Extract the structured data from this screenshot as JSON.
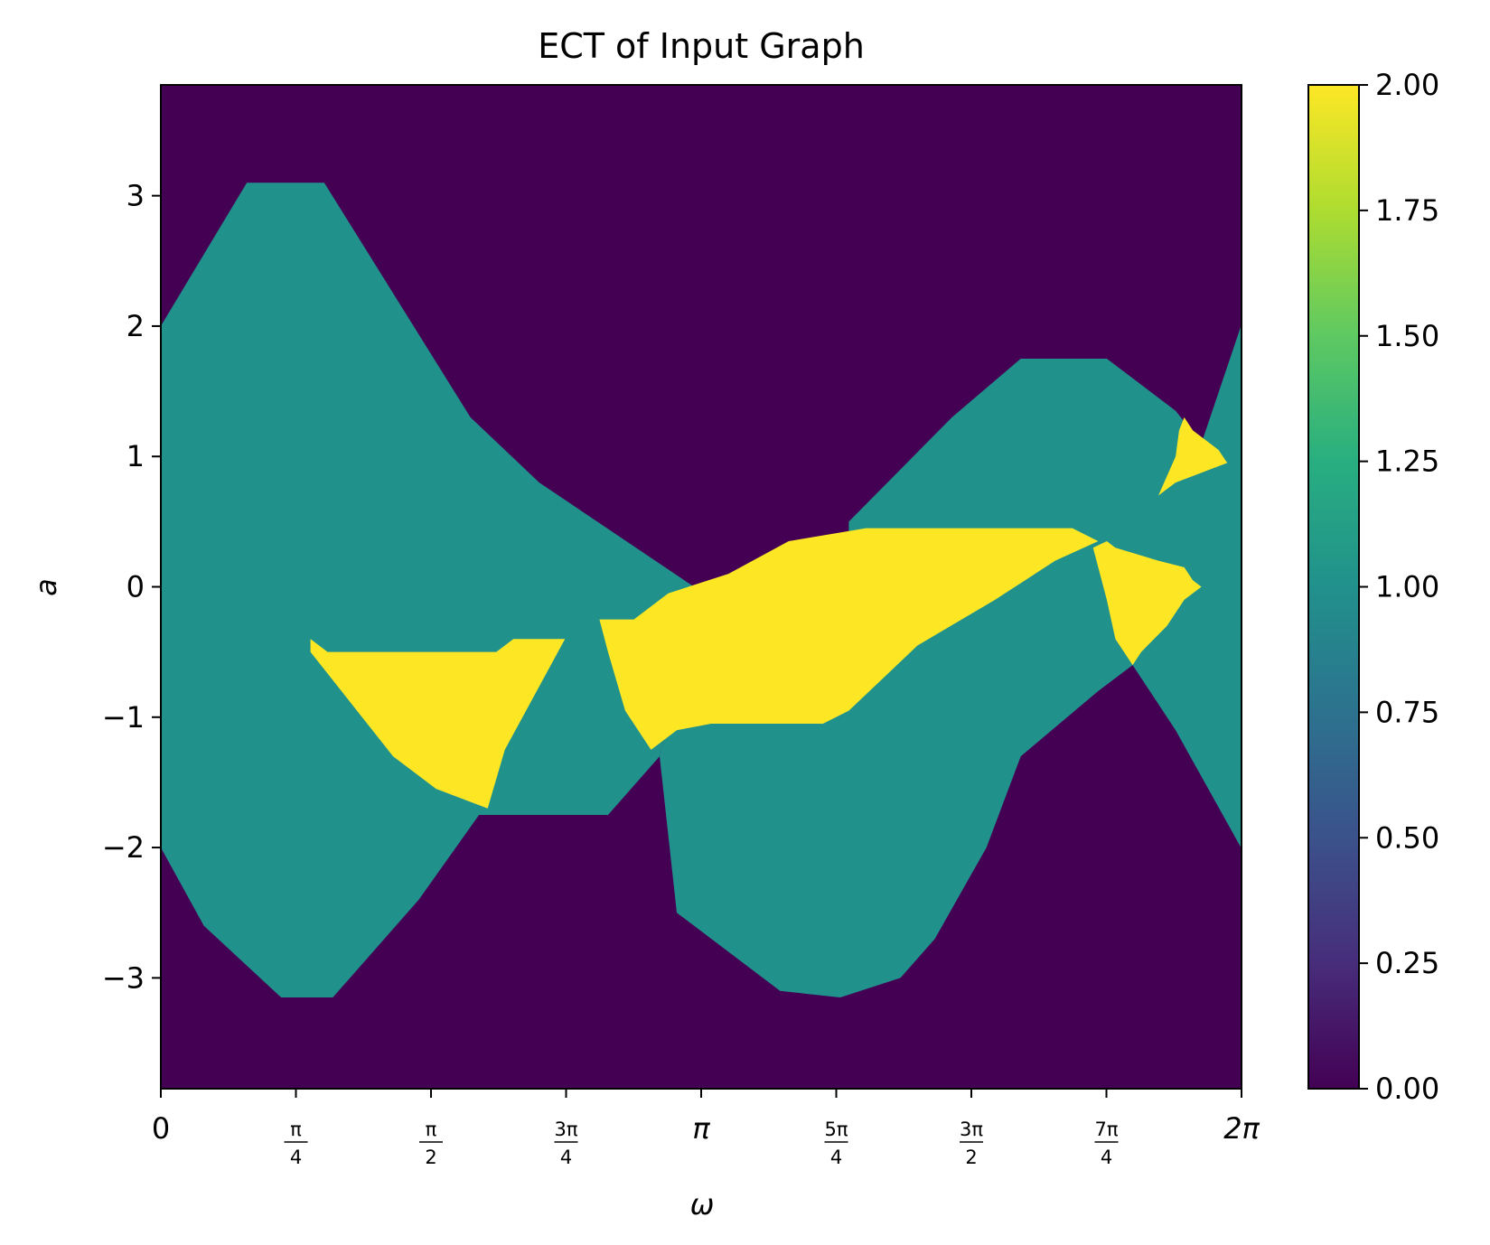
{
  "chart_data": {
    "type": "heatmap",
    "title": "ECT of Input Graph",
    "xlabel": "ω",
    "ylabel": "a",
    "xlim": [
      0,
      6.2832
    ],
    "ylim": [
      -3.85,
      3.85
    ],
    "x_ticks": [
      {
        "value": 0,
        "label": "0",
        "frac": false
      },
      {
        "value": 0.7854,
        "num": "π",
        "den": "4",
        "frac": true
      },
      {
        "value": 1.5708,
        "num": "π",
        "den": "2",
        "frac": true
      },
      {
        "value": 2.3562,
        "num": "3π",
        "den": "4",
        "frac": true
      },
      {
        "value": 3.1416,
        "label": "π",
        "frac": false
      },
      {
        "value": 3.927,
        "num": "5π",
        "den": "4",
        "frac": true
      },
      {
        "value": 4.7124,
        "num": "3π",
        "den": "2",
        "frac": true
      },
      {
        "value": 5.4978,
        "num": "7π",
        "den": "4",
        "frac": true
      },
      {
        "value": 6.2832,
        "label": "2π",
        "frac": false
      }
    ],
    "y_ticks": [
      {
        "value": 3,
        "label": "3"
      },
      {
        "value": 2,
        "label": "2"
      },
      {
        "value": 1,
        "label": "1"
      },
      {
        "value": 0,
        "label": "0"
      },
      {
        "value": -1,
        "label": "−1"
      },
      {
        "value": -2,
        "label": "−2"
      },
      {
        "value": -3,
        "label": "−3"
      }
    ],
    "colorbar": {
      "vmin": 0.0,
      "vmax": 2.0,
      "ticks": [
        {
          "value": 0.0,
          "label": "0.00"
        },
        {
          "value": 0.25,
          "label": "0.25"
        },
        {
          "value": 0.5,
          "label": "0.50"
        },
        {
          "value": 0.75,
          "label": "0.75"
        },
        {
          "value": 1.0,
          "label": "1.00"
        },
        {
          "value": 1.25,
          "label": "1.25"
        },
        {
          "value": 1.5,
          "label": "1.50"
        },
        {
          "value": 1.75,
          "label": "1.75"
        },
        {
          "value": 2.0,
          "label": "2.00"
        }
      ]
    },
    "colormap": "viridis",
    "colors": {
      "level0": "#440154",
      "level1": "#21918c",
      "level2": "#fde725"
    },
    "regions": [
      {
        "name": "teal-left-lobe",
        "value": 1,
        "polygon": [
          [
            0,
            2.0
          ],
          [
            0.5,
            3.1
          ],
          [
            0.95,
            3.1
          ],
          [
            1.8,
            1.3
          ],
          [
            2.2,
            0.8
          ],
          [
            3.1,
            0.0
          ],
          [
            3.1,
            -0.3
          ],
          [
            2.9,
            -1.3
          ],
          [
            2.6,
            -1.75
          ],
          [
            1.85,
            -1.75
          ],
          [
            1.5,
            -2.4
          ],
          [
            1.0,
            -3.15
          ],
          [
            0.7,
            -3.15
          ],
          [
            0.25,
            -2.6
          ],
          [
            0,
            -2.0
          ]
        ]
      },
      {
        "name": "teal-right-lobe",
        "value": 1,
        "polygon": [
          [
            4.0,
            0.5
          ],
          [
            4.6,
            1.3
          ],
          [
            5.0,
            1.75
          ],
          [
            5.5,
            1.75
          ],
          [
            5.9,
            1.35
          ],
          [
            6.05,
            1.1
          ],
          [
            6.28,
            2.0
          ],
          [
            6.28,
            -2.0
          ],
          [
            5.9,
            -1.1
          ],
          [
            5.65,
            -0.6
          ],
          [
            5.45,
            -0.8
          ],
          [
            5.0,
            -1.3
          ],
          [
            4.8,
            -2.0
          ],
          [
            4.5,
            -2.7
          ],
          [
            4.3,
            -3.0
          ],
          [
            3.95,
            -3.15
          ],
          [
            3.6,
            -3.1
          ],
          [
            3.0,
            -2.5
          ],
          [
            2.9,
            -1.3
          ],
          [
            3.1,
            -0.3
          ],
          [
            3.2,
            0.0
          ],
          [
            3.6,
            0.2
          ],
          [
            4.0,
            0.4
          ]
        ]
      },
      {
        "name": "yellow-left-triangle",
        "value": 2,
        "polygon": [
          [
            0.87,
            -0.4
          ],
          [
            0.97,
            -0.5
          ],
          [
            1.95,
            -0.5
          ],
          [
            2.05,
            -0.4
          ],
          [
            2.35,
            -0.4
          ],
          [
            2.0,
            -1.25
          ],
          [
            1.9,
            -1.7
          ],
          [
            1.6,
            -1.55
          ],
          [
            1.35,
            -1.3
          ],
          [
            1.05,
            -0.8
          ],
          [
            0.87,
            -0.5
          ]
        ]
      },
      {
        "name": "yellow-center-band",
        "value": 2,
        "polygon": [
          [
            2.55,
            -0.25
          ],
          [
            2.75,
            -0.25
          ],
          [
            2.95,
            -0.05
          ],
          [
            3.3,
            0.1
          ],
          [
            3.65,
            0.35
          ],
          [
            4.1,
            0.45
          ],
          [
            5.3,
            0.45
          ],
          [
            5.45,
            0.35
          ],
          [
            5.2,
            0.2
          ],
          [
            4.85,
            -0.1
          ],
          [
            4.4,
            -0.45
          ],
          [
            4.2,
            -0.7
          ],
          [
            4.0,
            -0.95
          ],
          [
            3.85,
            -1.05
          ],
          [
            3.2,
            -1.05
          ],
          [
            3.0,
            -1.1
          ],
          [
            2.85,
            -1.25
          ],
          [
            2.7,
            -0.95
          ],
          [
            2.6,
            -0.5
          ]
        ]
      },
      {
        "name": "yellow-right-triangle",
        "value": 2,
        "polygon": [
          [
            5.5,
            0.35
          ],
          [
            5.55,
            0.3
          ],
          [
            5.8,
            0.2
          ],
          [
            5.95,
            0.15
          ],
          [
            6.0,
            0.05
          ],
          [
            6.05,
            0.0
          ],
          [
            5.95,
            -0.1
          ],
          [
            5.85,
            -0.3
          ],
          [
            5.7,
            -0.5
          ],
          [
            5.65,
            -0.6
          ],
          [
            5.55,
            -0.4
          ],
          [
            5.5,
            -0.1
          ],
          [
            5.42,
            0.3
          ]
        ]
      },
      {
        "name": "yellow-far-right-wedge",
        "value": 2,
        "polygon": [
          [
            5.95,
            1.3
          ],
          [
            6.0,
            1.2
          ],
          [
            6.15,
            1.05
          ],
          [
            6.2,
            0.95
          ],
          [
            6.1,
            0.9
          ],
          [
            5.9,
            0.8
          ],
          [
            5.85,
            0.75
          ],
          [
            5.8,
            0.7
          ],
          [
            5.85,
            0.85
          ],
          [
            5.9,
            1.0
          ],
          [
            5.92,
            1.2
          ]
        ]
      }
    ]
  }
}
